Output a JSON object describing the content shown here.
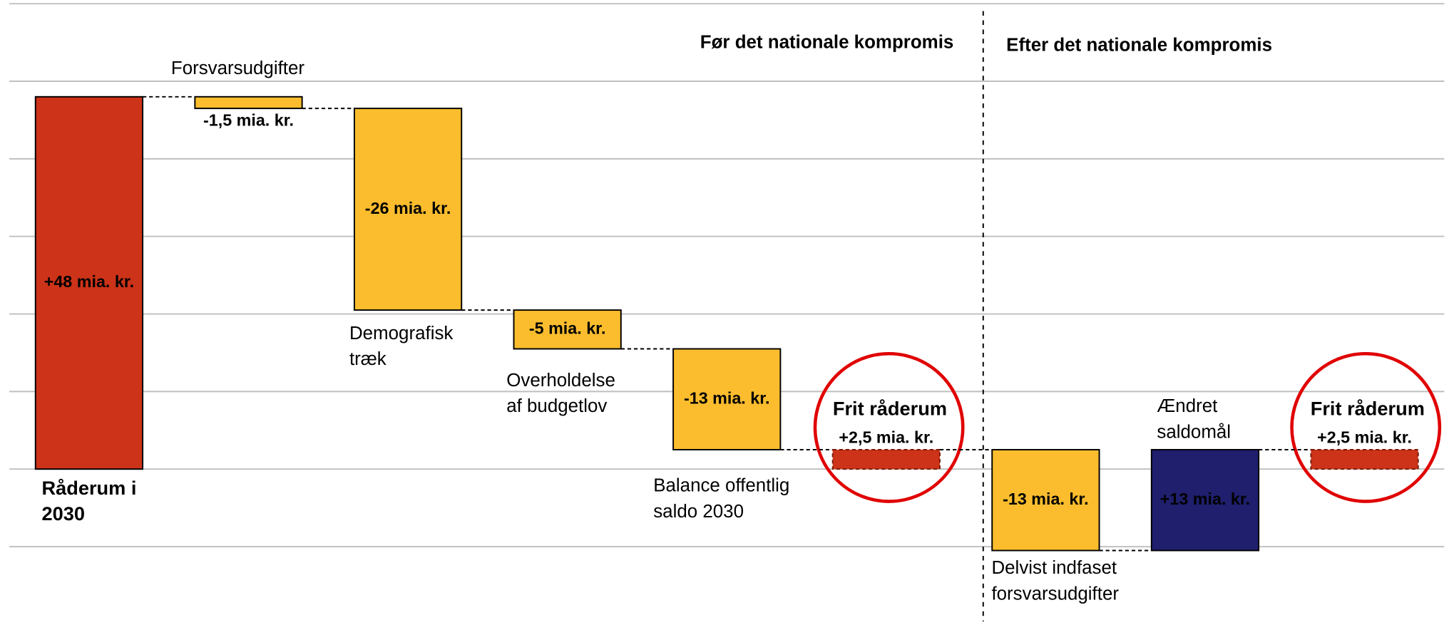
{
  "chart_data": {
    "type": "waterfall",
    "sections": [
      "Før det nationale kompromis",
      "Efter det nationale kompromis"
    ],
    "categories": [
      [
        "Råderum i",
        "2030"
      ],
      [
        "Forsvarsudgifter"
      ],
      [
        "Demografisk",
        "træk"
      ],
      [
        "Overholdelse",
        "af budgetlov"
      ],
      [
        "Balance offentlig",
        "saldo 2030"
      ],
      [
        "Frit råderum"
      ],
      [
        "Delvist indfaset",
        "forsvarsudgifter"
      ],
      [
        "Ændret",
        "saldomål"
      ],
      [
        "Frit råderum"
      ]
    ],
    "measures": [
      "absolute",
      "relative",
      "relative",
      "relative",
      "relative",
      "total",
      "relative",
      "relative",
      "total"
    ],
    "values": [
      48,
      -1.5,
      -26,
      -5,
      -13,
      2.5,
      -13,
      13,
      2.5
    ],
    "value_labels": [
      "+48 mia. kr.",
      "-1,5 mia. kr.",
      "-26 mia. kr.",
      "-5 mia. kr.",
      "-13 mia. kr.",
      "+2,5 mia. kr.",
      "-13 mia. kr.",
      "+13 mia. kr.",
      "+2,5 mia. kr."
    ],
    "colors": [
      "#cc3318",
      "#fbbd2e",
      "#fbbd2e",
      "#fbbd2e",
      "#fbbd2e",
      "#cc3318",
      "#fbbd2e",
      "#1f1f6e",
      "#cc3318"
    ],
    "ylim": [
      -20,
      60
    ],
    "yticks": [
      -10,
      0,
      10,
      20,
      30,
      40,
      50,
      60
    ],
    "grid": true
  }
}
